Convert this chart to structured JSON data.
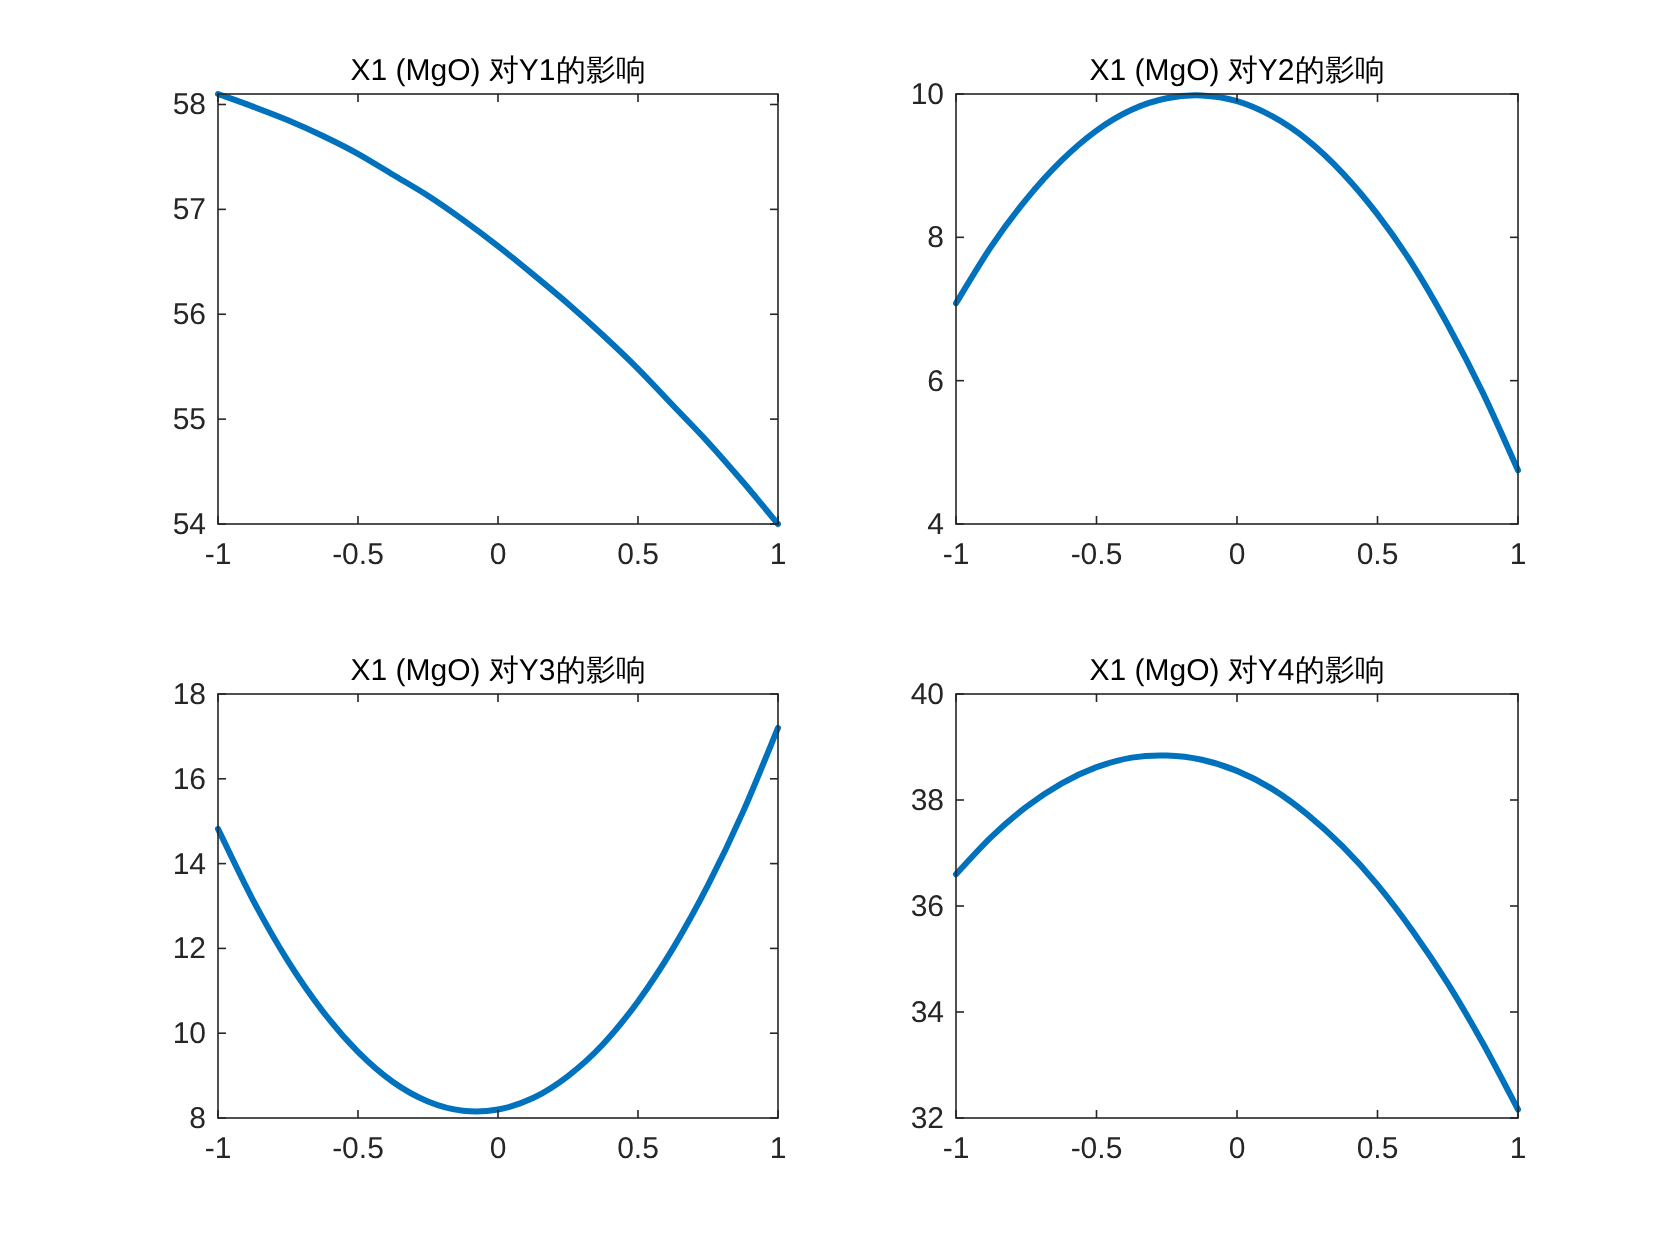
{
  "chart_data": [
    {
      "type": "line",
      "title": "X1 (MgO) 对Y1的影响",
      "color": "#0072bd",
      "xlim": [
        -1,
        1
      ],
      "ylim": [
        54,
        58.1
      ],
      "xticks": [
        -1,
        -0.5,
        0,
        0.5,
        1
      ],
      "yticks": [
        54,
        55,
        56,
        57,
        58
      ],
      "x": [
        -1,
        -0.875,
        -0.75,
        -0.625,
        -0.5,
        -0.375,
        -0.25,
        -0.125,
        0,
        0.125,
        0.25,
        0.375,
        0.5,
        0.625,
        0.75,
        0.875,
        1
      ],
      "values": [
        58.1,
        57.98,
        57.85,
        57.7,
        57.53,
        57.33,
        57.13,
        56.9,
        56.65,
        56.38,
        56.1,
        55.8,
        55.48,
        55.13,
        54.78,
        54.4,
        54.0
      ]
    },
    {
      "type": "line",
      "title": "X1 (MgO) 对Y2的影响",
      "color": "#0072bd",
      "xlim": [
        -1,
        1
      ],
      "ylim": [
        4,
        10
      ],
      "xticks": [
        -1,
        -0.5,
        0,
        0.5,
        1
      ],
      "yticks": [
        4,
        6,
        8,
        10
      ],
      "x": [
        -1,
        -0.875,
        -0.75,
        -0.625,
        -0.5,
        -0.375,
        -0.25,
        -0.125,
        0,
        0.125,
        0.25,
        0.375,
        0.5,
        0.625,
        0.75,
        0.875,
        1
      ],
      "values": [
        7.08,
        7.87,
        8.53,
        9.07,
        9.49,
        9.78,
        9.94,
        9.98,
        9.9,
        9.69,
        9.36,
        8.9,
        8.32,
        7.62,
        6.78,
        5.83,
        4.75
      ]
    },
    {
      "type": "line",
      "title": "X1 (MgO) 对Y3的影响",
      "color": "#0072bd",
      "xlim": [
        -1,
        1
      ],
      "ylim": [
        8,
        18
      ],
      "xticks": [
        -1,
        -0.5,
        0,
        0.5,
        1
      ],
      "yticks": [
        8,
        10,
        12,
        14,
        16,
        18
      ],
      "x": [
        -1,
        -0.875,
        -0.75,
        -0.625,
        -0.5,
        -0.375,
        -0.25,
        -0.125,
        0,
        0.125,
        0.25,
        0.375,
        0.5,
        0.625,
        0.75,
        0.875,
        1
      ],
      "values": [
        14.82,
        13.14,
        11.7,
        10.51,
        9.56,
        8.85,
        8.39,
        8.17,
        8.2,
        8.47,
        8.99,
        9.74,
        10.75,
        12.0,
        13.49,
        15.22,
        17.2
      ]
    },
    {
      "type": "line",
      "title": "X1 (MgO) 对Y4的影响",
      "color": "#0072bd",
      "xlim": [
        -1,
        1
      ],
      "ylim": [
        32,
        40
      ],
      "xticks": [
        -1,
        -0.5,
        0,
        0.5,
        1
      ],
      "yticks": [
        32,
        34,
        36,
        38,
        40
      ],
      "x": [
        -1,
        -0.875,
        -0.75,
        -0.625,
        -0.5,
        -0.375,
        -0.25,
        -0.125,
        0,
        0.125,
        0.25,
        0.375,
        0.5,
        0.625,
        0.75,
        0.875,
        1
      ],
      "values": [
        36.6,
        37.3,
        37.87,
        38.31,
        38.62,
        38.8,
        38.84,
        38.76,
        38.55,
        38.21,
        37.73,
        37.13,
        36.4,
        35.53,
        34.54,
        33.41,
        32.16
      ]
    }
  ]
}
